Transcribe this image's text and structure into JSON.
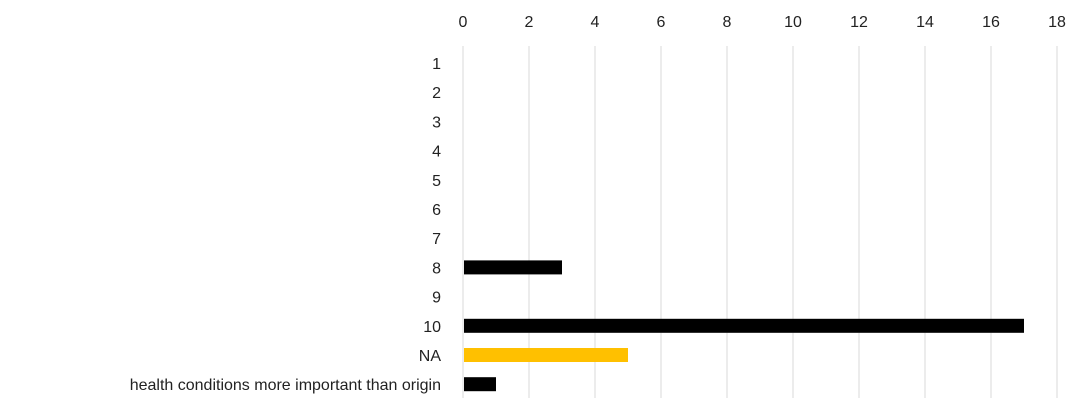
{
  "chart_data": {
    "type": "bar",
    "orientation": "horizontal",
    "categories": [
      "1",
      "2",
      "3",
      "4",
      "5",
      "6",
      "7",
      "8",
      "9",
      "10",
      "NA",
      "health conditions more important than origin"
    ],
    "values": [
      0,
      0,
      0,
      0,
      0,
      0,
      0,
      3,
      0,
      17,
      5,
      1
    ],
    "bar_colors": [
      "#000000",
      "#000000",
      "#000000",
      "#000000",
      "#000000",
      "#000000",
      "#000000",
      "#000000",
      "#000000",
      "#000000",
      "#FFC000",
      "#000000"
    ],
    "xlim": [
      0,
      18
    ],
    "x_ticks": [
      0,
      2,
      4,
      6,
      8,
      10,
      12,
      14,
      16,
      18
    ],
    "x_tick_labels": [
      "0",
      "2",
      "4",
      "6",
      "8",
      "10",
      "12",
      "14",
      "16",
      "18"
    ],
    "x_axis_position": "top",
    "grid": true,
    "title": "",
    "xlabel": "",
    "ylabel": ""
  }
}
